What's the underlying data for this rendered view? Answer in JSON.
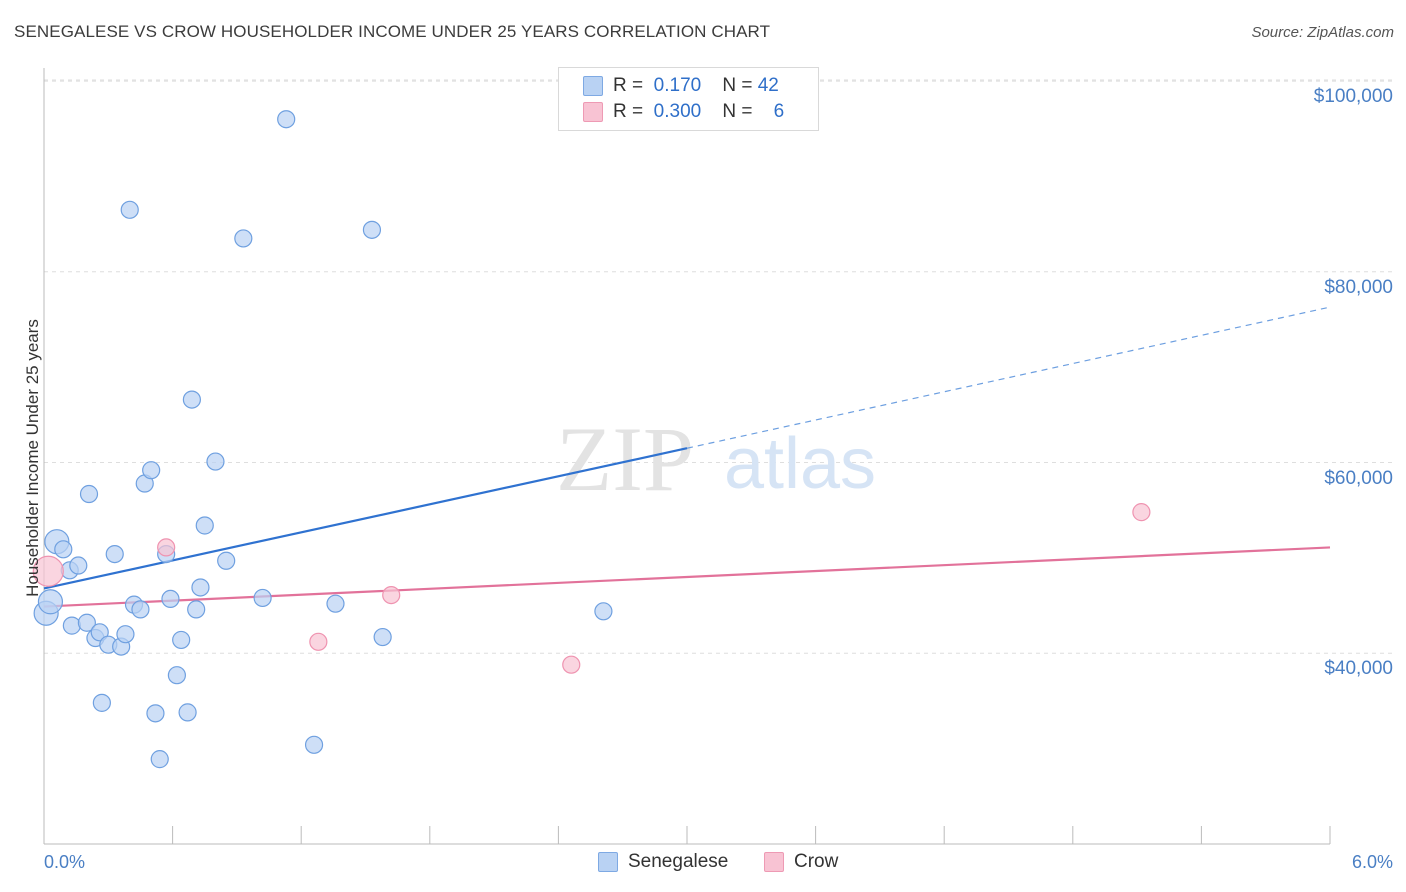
{
  "title": "SENEGALESE VS CROW HOUSEHOLDER INCOME UNDER 25 YEARS CORRELATION CHART",
  "source": "Source: ZipAtlas.com",
  "watermark": {
    "zip": "ZIP",
    "atlas": "atlas"
  },
  "legend": {
    "rows": [
      {
        "r_label": "R =",
        "r_value": "0.170",
        "n_label": "N =",
        "n_value": "42",
        "color": "#a7c7f2"
      },
      {
        "r_label": "R =",
        "r_value": "0.300",
        "n_label": "N =",
        "n_value": "6",
        "color": "#f7b9cc"
      }
    ]
  },
  "bottom_legend": [
    "Senegalese",
    "Crow"
  ],
  "chart_data": {
    "type": "scatter",
    "title": "SENEGALESE VS CROW HOUSEHOLDER INCOME UNDER 25 YEARS CORRELATION CHART",
    "xlabel": "",
    "ylabel": "Householder Income Under 25 years",
    "xlim": [
      0,
      6
    ],
    "ylim": [
      20000,
      102000
    ],
    "x_tick_labels": [
      "0.0%",
      "6.0%"
    ],
    "y_ticks": [
      40000,
      60000,
      80000,
      100000
    ],
    "y_tick_labels": [
      "$40,000",
      "$60,000",
      "$80,000",
      "$100,000"
    ],
    "grid": true,
    "legend_position": "top-center",
    "series": [
      {
        "name": "Senegalese",
        "color": "#6fa0e0",
        "fill": "#b9d2f3",
        "trend": {
          "x": [
            0,
            3.0
          ],
          "y": [
            46800,
            61500
          ],
          "dashed_extension": [
            3.0,
            6.0,
            61500,
            76300
          ]
        },
        "points": [
          [
            0.01,
            44200
          ],
          [
            0.03,
            45400
          ],
          [
            0.06,
            51700
          ],
          [
            0.09,
            50900
          ],
          [
            0.12,
            48700
          ],
          [
            0.16,
            49200
          ],
          [
            0.13,
            42900
          ],
          [
            0.2,
            43200
          ],
          [
            0.21,
            56700
          ],
          [
            0.24,
            41600
          ],
          [
            0.26,
            42200
          ],
          [
            0.27,
            34800
          ],
          [
            0.3,
            40900
          ],
          [
            0.33,
            50400
          ],
          [
            0.36,
            40700
          ],
          [
            0.38,
            42000
          ],
          [
            0.4,
            86500
          ],
          [
            0.42,
            45100
          ],
          [
            0.45,
            44600
          ],
          [
            0.47,
            57800
          ],
          [
            0.5,
            59200
          ],
          [
            0.52,
            33700
          ],
          [
            0.54,
            28900
          ],
          [
            0.57,
            50400
          ],
          [
            0.59,
            45700
          ],
          [
            0.62,
            37700
          ],
          [
            0.64,
            41400
          ],
          [
            0.67,
            33800
          ],
          [
            0.69,
            66600
          ],
          [
            0.71,
            44600
          ],
          [
            0.73,
            46900
          ],
          [
            0.75,
            53400
          ],
          [
            0.8,
            60100
          ],
          [
            0.85,
            49700
          ],
          [
            0.93,
            83500
          ],
          [
            1.02,
            45800
          ],
          [
            1.13,
            96000
          ],
          [
            1.26,
            30400
          ],
          [
            1.36,
            45200
          ],
          [
            1.53,
            84400
          ],
          [
            1.58,
            41700
          ],
          [
            2.61,
            44400
          ]
        ]
      },
      {
        "name": "Crow",
        "color": "#ef93b0",
        "fill": "#f8c3d3",
        "trend": {
          "x": [
            0,
            6.0
          ],
          "y": [
            44900,
            51100
          ]
        },
        "points": [
          [
            0.02,
            48600
          ],
          [
            0.57,
            51100
          ],
          [
            1.28,
            41200
          ],
          [
            1.62,
            46100
          ],
          [
            2.46,
            38800
          ],
          [
            5.12,
            54800
          ]
        ]
      }
    ]
  }
}
